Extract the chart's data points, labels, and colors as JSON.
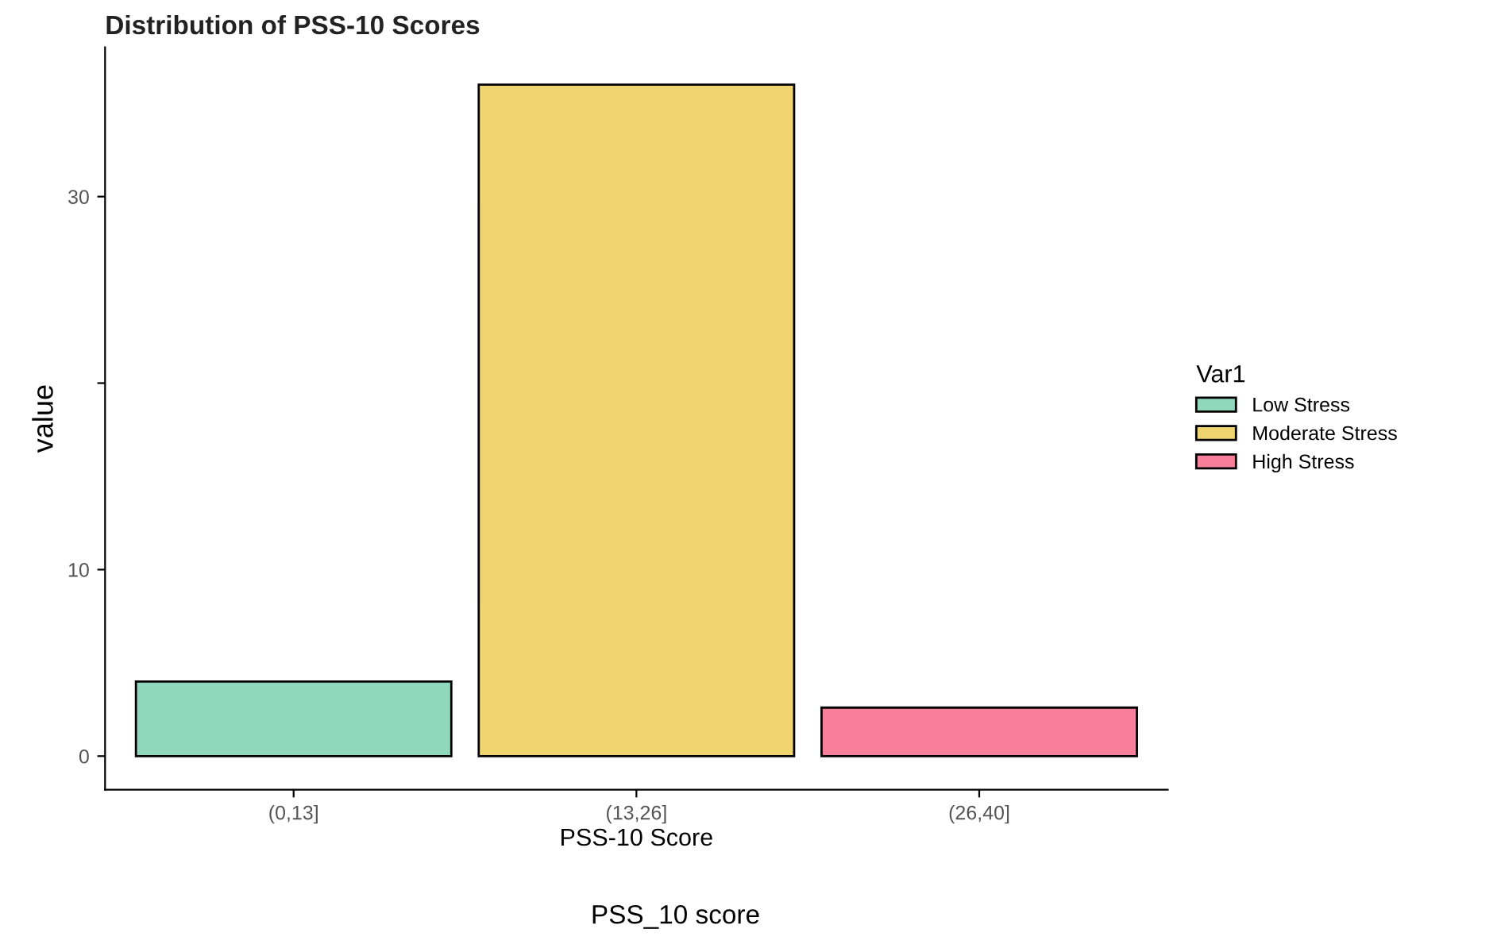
{
  "chart_data": {
    "type": "bar",
    "title": "Distribution of PSS-10 Scores",
    "xlabel": "PSS-10 Score",
    "ylabel": "value",
    "legend_title": "Var1",
    "categories": [
      "(0,13]",
      "(13,26]",
      "(26,40]"
    ],
    "series": [
      {
        "name": "Low Stress",
        "color": "#8fd8bd",
        "values": [
          4,
          null,
          null
        ]
      },
      {
        "name": "Moderate Stress",
        "color": "#f0d470",
        "values": [
          null,
          36,
          null
        ]
      },
      {
        "name": "High Stress",
        "color": "#f87f9a",
        "values": [
          null,
          null,
          2.6
        ]
      }
    ],
    "ylim": [
      -1.8,
      38
    ],
    "yticks": [
      0,
      10,
      {
        "value": 20,
        "label": null
      },
      30
    ],
    "grid": false,
    "legend": "right",
    "annotations": [
      "PSS_10 score"
    ]
  }
}
